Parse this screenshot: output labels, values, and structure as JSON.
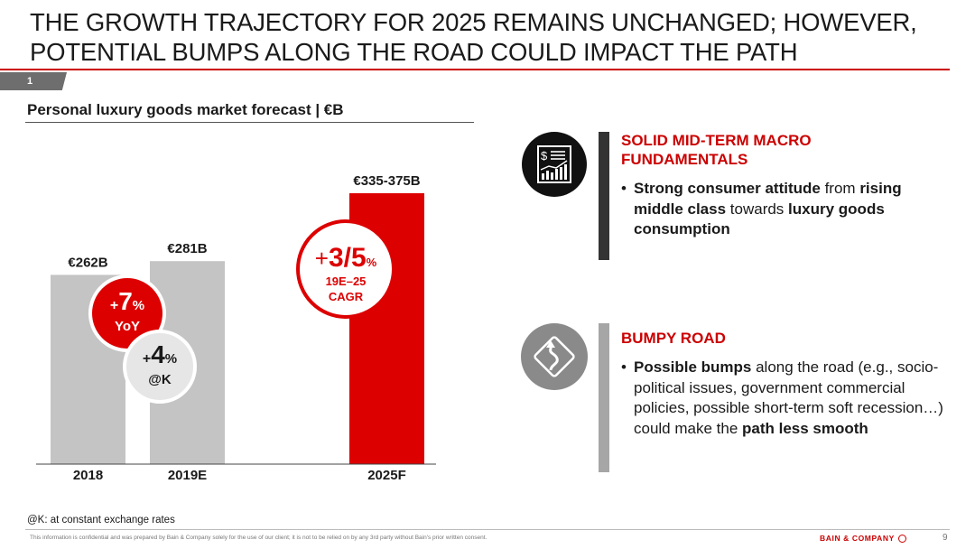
{
  "title": {
    "line1": "THE GROWTH TRAJECTORY FOR 2025 REMAINS UNCHANGED; HOWEVER,",
    "line2": "POTENTIAL BUMPS ALONG THE ROAD COULD IMPACT THE PATH"
  },
  "section_number": "1",
  "chart_heading": "Personal luxury goods market forecast | €B",
  "chart_data": {
    "type": "bar",
    "categories": [
      "2018",
      "2019E",
      "2025F"
    ],
    "values": [
      262,
      281,
      375
    ],
    "range_2025": [
      335,
      375
    ],
    "labels": [
      "€262B",
      "€281B",
      "€335-375B"
    ],
    "ylim": [
      0,
      400
    ],
    "colors": [
      "#c4c4c4",
      "#c4c4c4",
      "#dd0000"
    ],
    "annotations": [
      {
        "big": "7",
        "prefix": "+",
        "suffix": "%",
        "sub": "YoY",
        "style": "red"
      },
      {
        "big": "4",
        "prefix": "+",
        "suffix": "%",
        "sub": "@K",
        "style": "grey"
      },
      {
        "big": "3/5",
        "prefix": "+",
        "suffix": "%",
        "sub1": "19E–25",
        "sub2": "CAGR",
        "style": "outline"
      }
    ]
  },
  "panel1": {
    "icon": "dollar-chart-icon",
    "heading_line1": "SOLID MID-TERM MACRO",
    "heading_line2": "FUNDAMENTALS",
    "bullet_parts": [
      {
        "text": "Strong consumer attitude",
        "bold": true
      },
      {
        "text": " from ",
        "bold": false
      },
      {
        "text": "rising middle class",
        "bold": true
      },
      {
        "text": " towards ",
        "bold": false
      },
      {
        "text": "luxury goods consumption",
        "bold": true
      }
    ]
  },
  "panel2": {
    "icon": "winding-road-sign-icon",
    "heading": "BUMPY ROAD",
    "bullet_parts": [
      {
        "text": "Possible bumps",
        "bold": true
      },
      {
        "text": " along the road (e.g., socio-political issues, government commercial policies, possible short-term soft recession…) could make the ",
        "bold": false
      },
      {
        "text": "path less smooth",
        "bold": true
      }
    ]
  },
  "footnote": "@K: at constant exchange rates",
  "disclaimer": "This information is confidential and was prepared by Bain & Company solely for the use of our client; it is not to be relied on by any 3rd party without Bain's prior written consent.",
  "brand": "BAIN & COMPANY",
  "page_number": "9",
  "colors": {
    "accent": "#cc0000",
    "bar_grey": "#c4c4c4",
    "bar_red": "#dd0000"
  }
}
